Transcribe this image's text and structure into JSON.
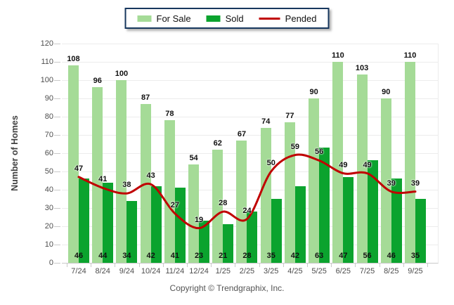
{
  "legend": {
    "items": [
      {
        "label": "For Sale",
        "swatch": "square",
        "color": "#A5DB97"
      },
      {
        "label": "Sold",
        "swatch": "square",
        "color": "#0BA32E"
      },
      {
        "label": "Pended",
        "swatch": "line",
        "color": "#C00000"
      }
    ]
  },
  "y_axis": {
    "title": "Number of Homes",
    "min": 0,
    "max": 120,
    "step": 10
  },
  "footer": {
    "text": "Copyright © Trendgraphix, Inc."
  },
  "chart_data": {
    "type": "bar",
    "categories": [
      "7/24",
      "8/24",
      "9/24",
      "10/24",
      "11/24",
      "12/24",
      "1/25",
      "2/25",
      "3/25",
      "4/25",
      "5/25",
      "6/25",
      "7/25",
      "8/25",
      "9/25"
    ],
    "series": [
      {
        "name": "For Sale",
        "type": "bar",
        "color": "#A5DB97",
        "values": [
          108,
          96,
          100,
          87,
          78,
          54,
          62,
          67,
          74,
          77,
          90,
          110,
          103,
          90,
          110
        ]
      },
      {
        "name": "Sold",
        "type": "bar",
        "color": "#0BA32E",
        "values": [
          46,
          44,
          34,
          42,
          41,
          23,
          21,
          28,
          35,
          42,
          63,
          47,
          56,
          46,
          35
        ]
      },
      {
        "name": "Pended",
        "type": "line",
        "color": "#C00000",
        "values": [
          47,
          41,
          38,
          43,
          27,
          19,
          28,
          24,
          50,
          59,
          56,
          49,
          49,
          39,
          39
        ]
      }
    ],
    "title": "",
    "xlabel": "",
    "ylabel": "Number of Homes",
    "ylim": [
      0,
      120
    ],
    "ytick_step": 10,
    "grid": true,
    "legend_position": "top-center"
  }
}
